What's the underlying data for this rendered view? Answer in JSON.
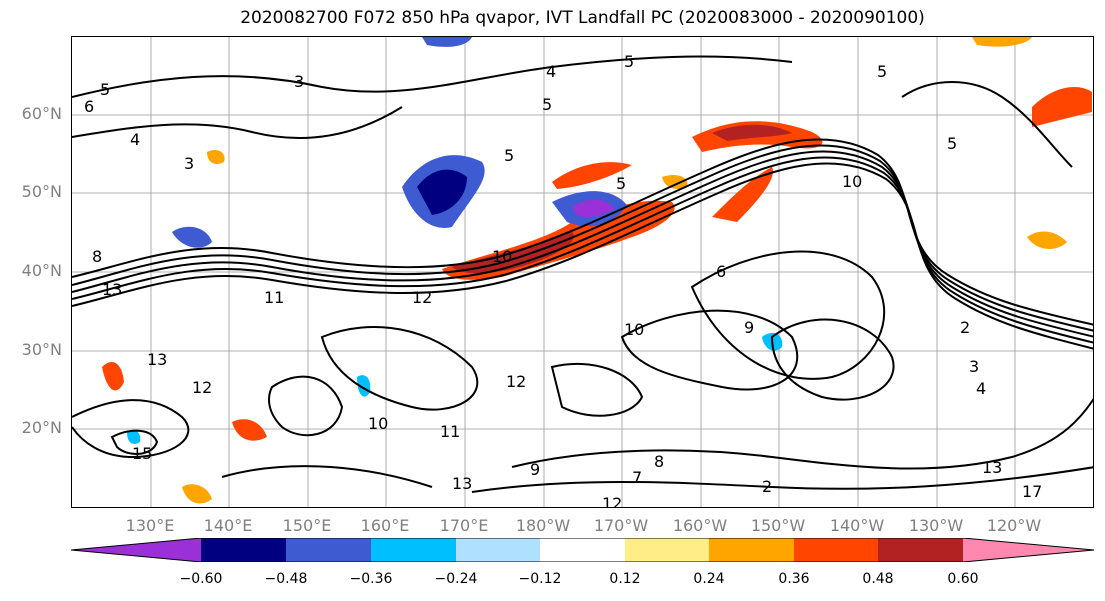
{
  "title": "2020082700 F072 850 hPa qvapor, IVT Landfall PC (2020083000 - 2020090100)",
  "lat_labels": [
    "60°N",
    "50°N",
    "40°N",
    "30°N",
    "20°N"
  ],
  "lon_labels": [
    "130°E",
    "140°E",
    "150°E",
    "160°E",
    "170°E",
    "180°W",
    "170°W",
    "160°W",
    "150°W",
    "140°W",
    "130°W",
    "120°W"
  ],
  "colorbar": {
    "colors": [
      "#9b30d9",
      "#000080",
      "#3f5bd1",
      "#00bfff",
      "#b0e0ff",
      "#ffffff",
      "#ffee88",
      "#ffa500",
      "#ff4500",
      "#b22222",
      "#ff88b0"
    ],
    "ticks": [
      "−0.60",
      "−0.48",
      "−0.36",
      "−0.24",
      "−0.12",
      "0.12",
      "0.24",
      "0.36",
      "0.48",
      "0.60"
    ]
  },
  "contour_labels": [
    "5",
    "3",
    "6",
    "4",
    "3",
    "5",
    "5",
    "5",
    "4",
    "5",
    "10",
    "13",
    "11",
    "12",
    "10",
    "13",
    "15",
    "12",
    "10",
    "11",
    "13",
    "9",
    "7",
    "8",
    "12",
    "6",
    "9",
    "10",
    "2",
    "3",
    "4",
    "13",
    "17",
    "12",
    "5",
    "5",
    "2",
    "8"
  ]
}
